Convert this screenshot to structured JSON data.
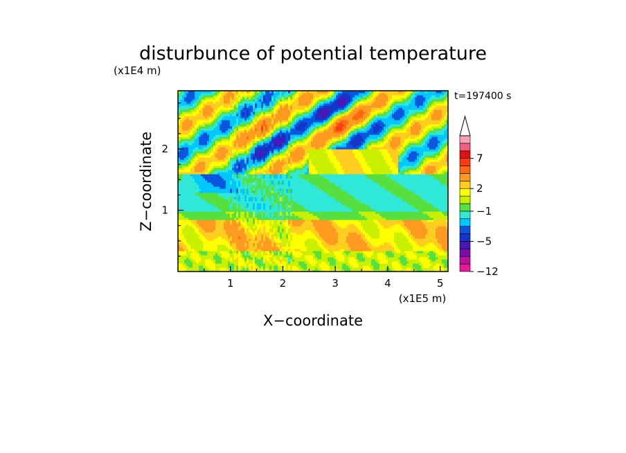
{
  "chart_data": {
    "type": "heatmap",
    "title": "disturbunce of potential temperature",
    "time_label": "t=197400 s",
    "xlabel": "X−coordinate",
    "ylabel": "Z−coordinate",
    "x_scale_label": "(x1E5 m)",
    "y_scale_label": "(x1E4 m)",
    "xlim": [
      0,
      5.15
    ],
    "ylim": [
      0,
      2.95
    ],
    "x_ticks": [
      "1",
      "2",
      "3",
      "4",
      "5"
    ],
    "y_ticks": [
      "1",
      "2"
    ],
    "x_tick_values": [
      1,
      2,
      3,
      4,
      5
    ],
    "y_tick_values": [
      1,
      2
    ],
    "colorbar": {
      "levels": [
        -12,
        -10,
        -8,
        -6,
        -5,
        -4,
        -3,
        -2,
        -1,
        0,
        1,
        2,
        3,
        5,
        6,
        7,
        8,
        9,
        11
      ],
      "labeled_levels": [
        "7",
        "2",
        "−1",
        "−5",
        "−12"
      ],
      "labeled_values": [
        7,
        2,
        -1,
        -5,
        -12
      ],
      "colors": [
        "#e8189a",
        "#b8109f",
        "#7a0ea6",
        "#4a16b8",
        "#1436c8",
        "#0a56e0",
        "#00c8ff",
        "#30e8d8",
        "#55e040",
        "#c8f000",
        "#ffff00",
        "#ffcc20",
        "#ff9a20",
        "#ff6a10",
        "#ff3a10",
        "#e01010",
        "#f06080",
        "#f8a0b0"
      ],
      "extend": "max"
    },
    "field_features": [
      {
        "region": "surface layer",
        "z": [
          0,
          0.35
        ],
        "value_range": [
          0,
          2
        ],
        "dominant": "yellow-green"
      },
      {
        "region": "lower warm band",
        "z": [
          0.35,
          0.8
        ],
        "value_range": [
          1,
          4
        ],
        "dominant": "yellow-orange"
      },
      {
        "region": "mid cold layer",
        "z": [
          0.9,
          1.6
        ],
        "value_range": [
          -2,
          -1
        ],
        "dominant": "cyan"
      },
      {
        "region": "upper wave band",
        "z": [
          1.6,
          2.95
        ],
        "value_range": [
          -8,
          9
        ],
        "dominant": "alternating warm/cold tilted bands"
      }
    ]
  },
  "colors": {
    "axes": "#000000",
    "background": "#ffffff"
  }
}
